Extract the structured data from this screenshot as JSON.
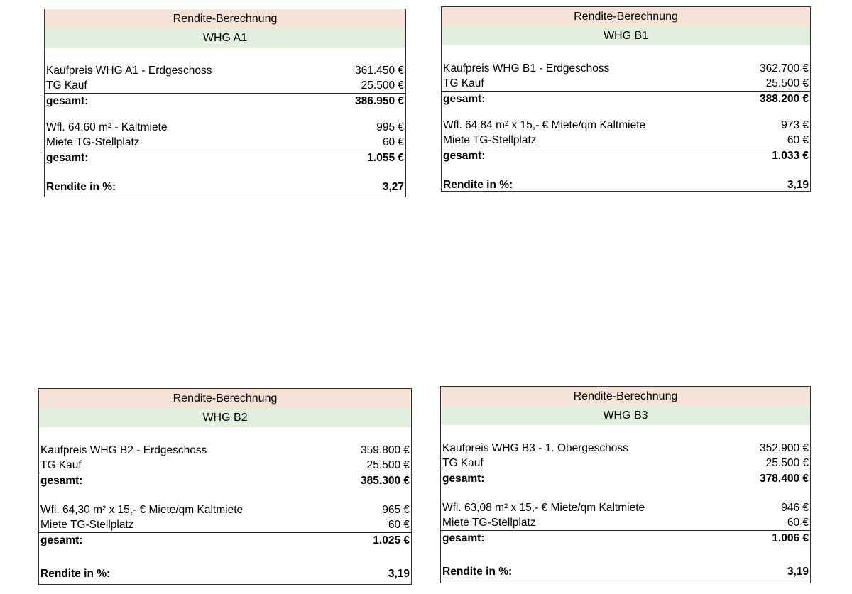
{
  "cards": [
    {
      "title": "Rendite-Berechnung",
      "unit": "WHG A1",
      "purchase_label": "Kaufpreis WHG A1  - Erdgeschoss",
      "purchase_value": "361.450 €",
      "garage_label": "TG Kauf",
      "garage_value": "25.500 €",
      "total1_label": "gesamt:",
      "total1_value": "386.950 €",
      "rent_label": "Wfl. 64,60 m² - Kaltmiete",
      "rent_value": "995 €",
      "parking_label": "Miete TG-Stellplatz",
      "parking_value": "60 €",
      "total2_label": "gesamt:",
      "total2_value": "1.055 €",
      "yield_label": "Rendite in %:",
      "yield_value": "3,27"
    },
    {
      "title": "Rendite-Berechnung",
      "unit": "WHG B1",
      "purchase_label": "Kaufpreis WHG B1 - Erdgeschoss",
      "purchase_value": "362.700 €",
      "garage_label": "TG Kauf",
      "garage_value": "25.500 €",
      "total1_label": "gesamt:",
      "total1_value": "388.200 €",
      "rent_label": "Wfl. 64,84 m²  x  15,- € Miete/qm Kaltmiete",
      "rent_value": "973 €",
      "parking_label": "Miete TG-Stellplatz",
      "parking_value": "60 €",
      "total2_label": "gesamt:",
      "total2_value": "1.033 €",
      "yield_label": "Rendite in %:",
      "yield_value": "3,19"
    },
    {
      "title": "Rendite-Berechnung",
      "unit": "WHG B2",
      "purchase_label": "Kaufpreis WHG B2 - Erdgeschoss",
      "purchase_value": "359.800 €",
      "garage_label": "TG Kauf",
      "garage_value": "25.500 €",
      "total1_label": "gesamt:",
      "total1_value": "385.300 €",
      "rent_label": "Wfl. 64,30 m²  x  15,- € Miete/qm Kaltmiete",
      "rent_value": "965 €",
      "parking_label": "Miete TG-Stellplatz",
      "parking_value": "60 €",
      "total2_label": "gesamt:",
      "total2_value": "1.025 €",
      "yield_label": "Rendite in %:",
      "yield_value": "3,19"
    },
    {
      "title": "Rendite-Berechnung",
      "unit": "WHG B3",
      "purchase_label": "Kaufpreis WHG B3 - 1. Obergeschoss",
      "purchase_value": "352.900 €",
      "garage_label": "TG Kauf",
      "garage_value": "25.500 €",
      "total1_label": "gesamt:",
      "total1_value": "378.400 €",
      "rent_label": "Wfl. 63,08 m²  x  15,- € Miete/qm Kaltmiete",
      "rent_value": "946 €",
      "parking_label": "Miete TG-Stellplatz",
      "parking_value": "60 €",
      "total2_label": "gesamt:",
      "total2_value": "1.006 €",
      "yield_label": "Rendite in %:",
      "yield_value": "3,19"
    }
  ]
}
